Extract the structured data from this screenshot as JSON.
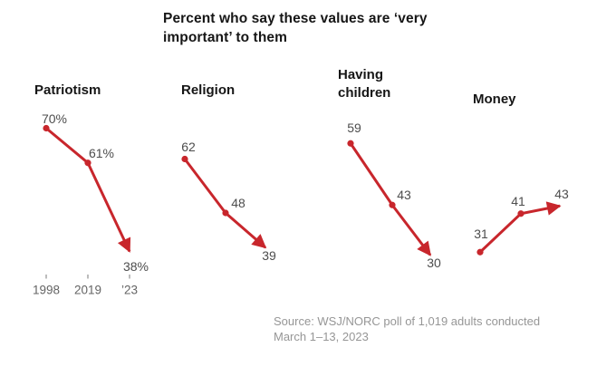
{
  "page_title": "Percent who say these values are ‘very important’ to them",
  "source": {
    "line1": "Source: WSJ/NORC poll of 1,019 adults conducted",
    "line2": "March 1–13, 2023"
  },
  "colors": {
    "line_red": "#c8262c",
    "value_label_gray": "#4d4d4d",
    "axis_label_gray": "#646464",
    "tick_gray": "#a6a6a6",
    "title_black": "#161616",
    "source_gray": "#969696"
  },
  "chart_data": [
    {
      "type": "line",
      "title": "Patriotism",
      "x": [
        "1998",
        "2019",
        "’23"
      ],
      "values": [
        70,
        61,
        38
      ],
      "point_labels": [
        "70%",
        "61%",
        "38%"
      ],
      "x_axis_visible": true,
      "arrow_end": true
    },
    {
      "type": "line",
      "title": "Religion",
      "x": [
        "1998",
        "2019",
        "’23"
      ],
      "values": [
        62,
        48,
        39
      ],
      "point_labels": [
        "62",
        "48",
        "39"
      ],
      "x_axis_visible": false,
      "arrow_end": true
    },
    {
      "type": "line",
      "title": "Having children",
      "x": [
        "1998",
        "2019",
        "’23"
      ],
      "values": [
        59,
        43,
        30
      ],
      "point_labels": [
        "59",
        "43",
        "30"
      ],
      "x_axis_visible": false,
      "arrow_end": true
    },
    {
      "type": "line",
      "title": "Money",
      "x": [
        "1998",
        "2019",
        "’23"
      ],
      "values": [
        31,
        41,
        43
      ],
      "point_labels": [
        "31",
        "41",
        "43"
      ],
      "x_axis_visible": false,
      "arrow_end": true
    }
  ]
}
